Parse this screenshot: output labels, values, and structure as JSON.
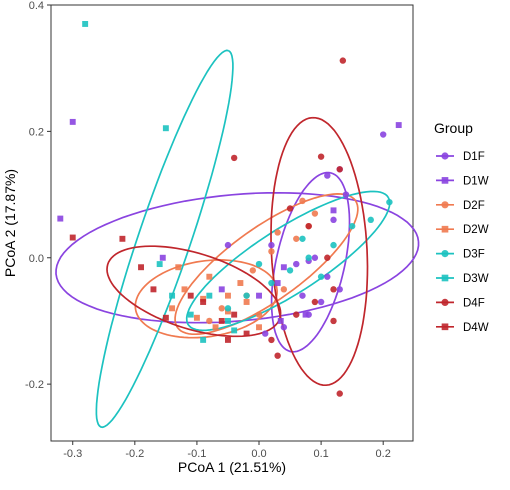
{
  "chart_data": {
    "type": "scatter",
    "xlabel": "PCoA 1 (21.51%)",
    "ylabel": "PCoA 2 (17.87%)",
    "xlim": [
      -0.335,
      0.248
    ],
    "ylim": [
      -0.29,
      0.4
    ],
    "x_ticks": [
      "-0.3",
      "-0.2",
      "-0.1",
      "0.0",
      "0.1",
      "0.2"
    ],
    "x_tick_values": [
      -0.3,
      -0.2,
      -0.1,
      0.0,
      0.1,
      0.2
    ],
    "y_ticks": [
      "-0.2",
      "0.0",
      "0.2",
      "0.4"
    ],
    "y_tick_values": [
      -0.2,
      0.0,
      0.2,
      0.4
    ],
    "grid": false,
    "legend": {
      "title": "Group",
      "placement": "right"
    },
    "series": [
      {
        "name": "D1F",
        "color": "#8A44E0",
        "marker": "circle",
        "points": [
          [
            0.2,
            0.195
          ],
          [
            0.13,
            0.14
          ],
          [
            0.11,
            0.13
          ],
          [
            0.14,
            0.1
          ],
          [
            0.12,
            0.06
          ],
          [
            -0.05,
            0.02
          ],
          [
            0.09,
            0.0
          ],
          [
            0.08,
            -0.005
          ],
          [
            0.06,
            -0.01
          ],
          [
            0.02,
            0.02
          ],
          [
            0.13,
            -0.05
          ],
          [
            0.1,
            -0.07
          ],
          [
            0.08,
            -0.09
          ],
          [
            0.04,
            -0.11
          ],
          [
            0.01,
            -0.12
          ],
          [
            0.11,
            -0.03
          ],
          [
            0.07,
            -0.06
          ]
        ],
        "ellipse": {
          "cx": 0.083,
          "cy": -0.007,
          "rx": 0.145,
          "ry": 0.055,
          "angle_deg": 77,
          "rx_note": "major axis along ~77deg"
        }
      },
      {
        "name": "D1W",
        "color": "#8A44E0",
        "marker": "square",
        "points": [
          [
            -0.3,
            0.215
          ],
          [
            0.225,
            0.21
          ],
          [
            -0.32,
            0.062
          ],
          [
            -0.155,
            0.0
          ],
          [
            0.12,
            0.075
          ],
          [
            0.04,
            -0.015
          ],
          [
            0.03,
            -0.04
          ],
          [
            0.0,
            -0.06
          ],
          [
            -0.06,
            -0.05
          ],
          [
            0.075,
            -0.09
          ],
          [
            0.035,
            -0.1
          ]
        ],
        "ellipse": {
          "cx": -0.035,
          "cy": 0.0,
          "rx": 0.293,
          "ry": 0.1,
          "angle_deg": 5
        }
      },
      {
        "name": "D2F",
        "color": "#F07A50",
        "marker": "circle",
        "points": [
          [
            0.07,
            0.09
          ],
          [
            0.08,
            0.05
          ],
          [
            0.06,
            0.03
          ],
          [
            0.02,
            0.01
          ],
          [
            -0.01,
            -0.02
          ],
          [
            0.04,
            -0.05
          ],
          [
            -0.02,
            -0.06
          ],
          [
            -0.06,
            -0.08
          ],
          [
            -0.08,
            -0.1
          ],
          [
            0.0,
            -0.09
          ],
          [
            0.09,
            0.07
          ],
          [
            0.03,
            0.04
          ]
        ],
        "ellipse": {
          "cx": 0.012,
          "cy": -0.01,
          "rx": 0.175,
          "ry": 0.058,
          "angle_deg": 35
        }
      },
      {
        "name": "D2W",
        "color": "#F07A50",
        "marker": "square",
        "points": [
          [
            -0.13,
            -0.015
          ],
          [
            -0.08,
            -0.03
          ],
          [
            -0.05,
            -0.06
          ],
          [
            -0.14,
            -0.08
          ],
          [
            -0.1,
            -0.095
          ],
          [
            -0.07,
            -0.11
          ],
          [
            -0.05,
            -0.085
          ],
          [
            -0.02,
            -0.07
          ],
          [
            -0.12,
            -0.05
          ],
          [
            -0.09,
            -0.065
          ],
          [
            0.0,
            -0.11
          ],
          [
            -0.03,
            -0.04
          ]
        ],
        "ellipse": {
          "cx": -0.085,
          "cy": -0.065,
          "rx": 0.115,
          "ry": 0.06,
          "angle_deg": 8
        }
      },
      {
        "name": "D3F",
        "color": "#1CC2C0",
        "marker": "circle",
        "points": [
          [
            0.21,
            0.088
          ],
          [
            0.18,
            0.06
          ],
          [
            0.15,
            0.05
          ],
          [
            0.12,
            0.02
          ],
          [
            0.08,
            0.0
          ],
          [
            0.05,
            -0.02
          ],
          [
            0.02,
            -0.04
          ],
          [
            -0.02,
            -0.06
          ],
          [
            -0.05,
            -0.08
          ],
          [
            0.1,
            -0.03
          ],
          [
            0.07,
            0.03
          ],
          [
            0.0,
            -0.01
          ]
        ],
        "ellipse": {
          "cx": 0.047,
          "cy": -0.005,
          "rx": 0.19,
          "ry": 0.052,
          "angle_deg": 32
        }
      },
      {
        "name": "D3W",
        "color": "#1CC2C0",
        "marker": "square",
        "points": [
          [
            -0.28,
            0.37
          ],
          [
            -0.15,
            0.205
          ],
          [
            -0.16,
            -0.01
          ],
          [
            -0.14,
            -0.06
          ],
          [
            -0.11,
            -0.09
          ],
          [
            -0.08,
            -0.06
          ],
          [
            -0.05,
            -0.1
          ],
          [
            -0.09,
            -0.13
          ],
          [
            -0.04,
            -0.115
          ]
        ],
        "ellipse": {
          "cx": -0.152,
          "cy": 0.03,
          "rx": 0.315,
          "ry": 0.042,
          "angle_deg": 71
        }
      },
      {
        "name": "D4F",
        "color": "#C0262C",
        "marker": "circle",
        "points": [
          [
            0.135,
            0.312
          ],
          [
            -0.04,
            0.158
          ],
          [
            0.1,
            0.16
          ],
          [
            0.13,
            0.14
          ],
          [
            0.05,
            0.078
          ],
          [
            0.08,
            0.05
          ],
          [
            0.11,
            0.0
          ],
          [
            0.12,
            -0.05
          ],
          [
            0.09,
            -0.07
          ],
          [
            0.02,
            -0.13
          ],
          [
            0.03,
            -0.155
          ],
          [
            0.13,
            -0.215
          ],
          [
            0.06,
            -0.09
          ],
          [
            0.12,
            -0.1
          ]
        ],
        "ellipse": {
          "cx": 0.097,
          "cy": 0.01,
          "rx": 0.212,
          "ry": 0.077,
          "angle_deg": 93
        }
      },
      {
        "name": "D4W",
        "color": "#C0262C",
        "marker": "square",
        "points": [
          [
            -0.3,
            0.032
          ],
          [
            -0.22,
            0.03
          ],
          [
            -0.19,
            -0.015
          ],
          [
            -0.17,
            -0.05
          ],
          [
            -0.15,
            -0.095
          ],
          [
            -0.09,
            -0.07
          ],
          [
            -0.06,
            -0.1
          ],
          [
            -0.11,
            -0.06
          ],
          [
            -0.05,
            -0.13
          ],
          [
            -0.04,
            -0.09
          ],
          [
            -0.02,
            -0.12
          ]
        ],
        "ellipse": {
          "cx": -0.105,
          "cy": -0.053,
          "rx": 0.145,
          "ry": 0.06,
          "angle_deg": -17
        }
      }
    ]
  }
}
